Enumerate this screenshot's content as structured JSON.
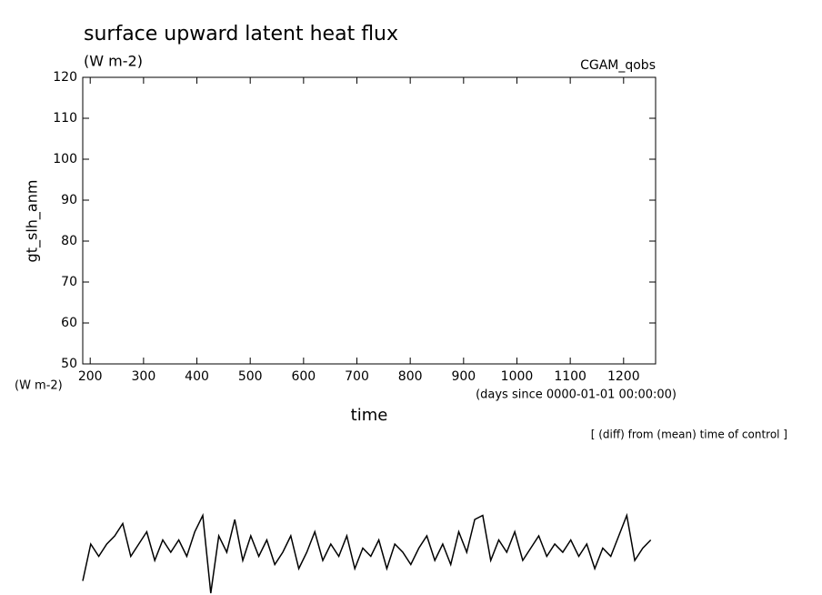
{
  "chart_data": {
    "type": "line",
    "title": "surface upward latent heat flux",
    "subtitle": "(W m-2)",
    "annotation": "CGAM_qobs",
    "ylabel": "gt_slh_anm",
    "yunits": "(W m-2)",
    "xlabel": "time",
    "xunits": "(days since 0000-01-01 00:00:00)",
    "note": "[ (diff) from (mean) time of control ]",
    "xlim": [
      186,
      1260
    ],
    "ylim": [
      50,
      120
    ],
    "xticks": [
      200,
      300,
      400,
      500,
      600,
      700,
      800,
      900,
      1000,
      1100,
      1200
    ],
    "yticks": [
      50,
      60,
      70,
      80,
      90,
      100,
      110,
      120
    ],
    "x": [
      186,
      201,
      216,
      231,
      246,
      261,
      276,
      291,
      306,
      321,
      336,
      351,
      366,
      381,
      396,
      411,
      426,
      441,
      456,
      471,
      486,
      501,
      516,
      531,
      546,
      561,
      576,
      591,
      606,
      621,
      636,
      651,
      666,
      681,
      696,
      711,
      726,
      741,
      756,
      771,
      786,
      801,
      816,
      831,
      846,
      861,
      876,
      891,
      906,
      921,
      936,
      951,
      966,
      981,
      996,
      1011,
      1026,
      1041,
      1056,
      1071,
      1086,
      1101,
      1116,
      1131,
      1146,
      1161,
      1176,
      1191,
      1206,
      1221,
      1236,
      1251
    ],
    "series": [
      {
        "color": "#000000",
        "values": [
          -3,
          6,
          3,
          6,
          8,
          11,
          3,
          6,
          9,
          2,
          7,
          4,
          7,
          3,
          9,
          13,
          -6,
          8,
          4,
          12,
          2,
          8,
          3,
          7,
          1,
          4,
          8,
          0,
          4,
          9,
          2,
          6,
          3,
          8,
          0,
          5,
          3,
          7,
          0,
          6,
          4,
          1,
          5,
          8,
          2,
          6,
          1,
          9,
          4,
          12,
          13,
          2,
          7,
          4,
          9,
          2,
          5,
          8,
          3,
          6,
          4,
          7,
          3,
          6,
          0,
          5,
          3,
          8,
          13,
          2,
          5,
          7
        ]
      }
    ]
  }
}
